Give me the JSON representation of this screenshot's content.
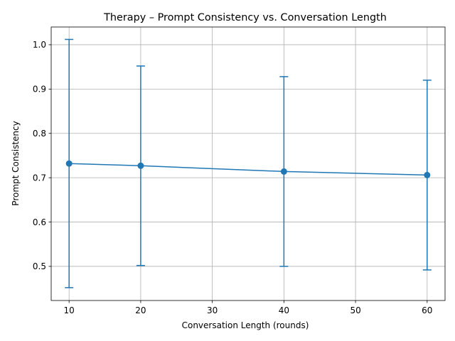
{
  "chart_data": {
    "type": "line",
    "title": "Therapy – Prompt Consistency vs. Conversation Length",
    "xlabel": "Conversation Length (rounds)",
    "ylabel": "Prompt Consistency",
    "x": [
      10,
      20,
      40,
      60
    ],
    "y": [
      0.732,
      0.727,
      0.714,
      0.706
    ],
    "yerr": [
      0.28,
      0.225,
      0.214,
      0.214
    ],
    "xlim": [
      7.5,
      62.5
    ],
    "ylim": [
      0.423,
      1.04
    ],
    "xticks": [
      10,
      20,
      30,
      40,
      50,
      60
    ],
    "xtick_labels": [
      "10",
      "20",
      "30",
      "40",
      "50",
      "60"
    ],
    "yticks": [
      0.5,
      0.6,
      0.7,
      0.8,
      0.9,
      1.0
    ],
    "ytick_labels": [
      "0.5",
      "0.6",
      "0.7",
      "0.8",
      "0.9",
      "1.0"
    ],
    "grid": true,
    "color": "#1f77b4",
    "marker": "circle",
    "errorbar_caps": true
  }
}
